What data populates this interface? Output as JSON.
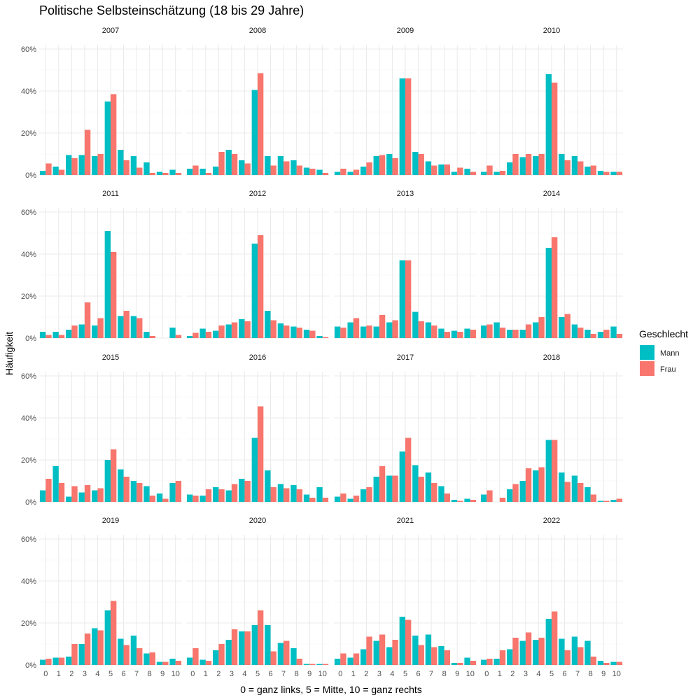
{
  "chart_data": {
    "type": "bar",
    "title": "Politische Selbsteinschätzung (18 bis 29 Jahre)",
    "xlabel": "0 = ganz links, 5 = Mitte, 10 = ganz rechts",
    "ylabel": "Häufigkeit",
    "categories": [
      "0",
      "1",
      "2",
      "3",
      "4",
      "5",
      "6",
      "7",
      "8",
      "9",
      "10"
    ],
    "ylim": [
      0,
      62
    ],
    "yticks": [
      0,
      20,
      40,
      60
    ],
    "ytick_labels": [
      "0%",
      "20%",
      "40%",
      "60%"
    ],
    "legend": {
      "title": "Geschlecht",
      "position": "right",
      "entries": [
        {
          "name": "Mann",
          "color": "#00BFC4"
        },
        {
          "name": "Frau",
          "color": "#F8766D"
        }
      ]
    },
    "panels": [
      {
        "year": "2007",
        "series": [
          {
            "name": "Mann",
            "values": [
              2,
              4,
              9.5,
              9.5,
              9,
              35,
              12,
              9,
              6,
              1.5,
              2.5
            ]
          },
          {
            "name": "Frau",
            "values": [
              5.5,
              2.5,
              8,
              21.5,
              10,
              38.5,
              7,
              3.5,
              1,
              1,
              1
            ]
          }
        ]
      },
      {
        "year": "2008",
        "series": [
          {
            "name": "Mann",
            "values": [
              3,
              3,
              4,
              12,
              7,
              40.5,
              9,
              9,
              7,
              3.5,
              2.5
            ]
          },
          {
            "name": "Frau",
            "values": [
              4.5,
              1,
              11,
              10,
              5.5,
              48.5,
              4.5,
              6.5,
              4.5,
              3,
              1
            ]
          }
        ]
      },
      {
        "year": "2009",
        "series": [
          {
            "name": "Mann",
            "values": [
              1.5,
              1.5,
              4,
              9,
              10,
              46,
              11,
              6.5,
              5,
              1.5,
              3
            ]
          },
          {
            "name": "Frau",
            "values": [
              3,
              2.5,
              6,
              9.5,
              8,
              46,
              10,
              4.5,
              5,
              3.5,
              1.5
            ]
          }
        ]
      },
      {
        "year": "2010",
        "series": [
          {
            "name": "Mann",
            "values": [
              1.5,
              1.5,
              6,
              8.5,
              9,
              48,
              10,
              9,
              4,
              2,
              1.5
            ]
          },
          {
            "name": "Frau",
            "values": [
              4.5,
              2,
              10,
              10,
              10,
              44,
              7,
              6.5,
              4.5,
              1.5,
              1.5
            ]
          }
        ]
      },
      {
        "year": "2011",
        "series": [
          {
            "name": "Mann",
            "values": [
              3,
              3,
              4,
              6.5,
              6,
              51,
              10.5,
              10.5,
              3,
              0,
              5
            ]
          },
          {
            "name": "Frau",
            "values": [
              1.5,
              1.5,
              6,
              17,
              9.5,
              41,
              13,
              9.5,
              1,
              0,
              1.5
            ]
          }
        ]
      },
      {
        "year": "2012",
        "series": [
          {
            "name": "Mann",
            "values": [
              1,
              4.5,
              3.5,
              6.5,
              9,
              45,
              13,
              7,
              5.5,
              4,
              1
            ]
          },
          {
            "name": "Frau",
            "values": [
              2.5,
              3,
              6,
              7.5,
              8,
              49,
              8.5,
              6,
              5,
              3.5,
              0.5
            ]
          }
        ]
      },
      {
        "year": "2013",
        "series": [
          {
            "name": "Mann",
            "values": [
              5.5,
              7.5,
              5.5,
              5.5,
              7.5,
              37,
              12.5,
              7.5,
              4.5,
              3.5,
              4.5
            ]
          },
          {
            "name": "Frau",
            "values": [
              5,
              9.5,
              6,
              11,
              8.5,
              37,
              8,
              6,
              3,
              3,
              4
            ]
          }
        ]
      },
      {
        "year": "2014",
        "series": [
          {
            "name": "Mann",
            "values": [
              6,
              7.5,
              4,
              4,
              7.5,
              43,
              10,
              6.5,
              4,
              3,
              5.5
            ]
          },
          {
            "name": "Frau",
            "values": [
              6.5,
              5,
              4,
              6.5,
              10,
              48,
              11.5,
              5,
              2,
              4,
              2
            ]
          }
        ]
      },
      {
        "year": "2015",
        "series": [
          {
            "name": "Mann",
            "values": [
              5.5,
              17,
              2.5,
              4.5,
              5.5,
              20,
              15.5,
              10,
              7.5,
              4,
              9
            ]
          },
          {
            "name": "Frau",
            "values": [
              11,
              9,
              7.5,
              8,
              6.5,
              25,
              12,
              9,
              3,
              1.5,
              10
            ]
          }
        ]
      },
      {
        "year": "2016",
        "series": [
          {
            "name": "Mann",
            "values": [
              3.5,
              3,
              7,
              5.5,
              11,
              30.5,
              15,
              8.5,
              8,
              3.5,
              7
            ]
          },
          {
            "name": "Frau",
            "values": [
              3,
              6,
              6,
              8.5,
              10,
              45.5,
              7,
              6.5,
              6,
              2,
              2
            ]
          }
        ]
      },
      {
        "year": "2017",
        "series": [
          {
            "name": "Mann",
            "values": [
              2.5,
              1.5,
              6,
              12,
              12.5,
              24,
              17.5,
              14,
              7.5,
              1,
              1.5
            ]
          },
          {
            "name": "Frau",
            "values": [
              4,
              3,
              7,
              17,
              12.5,
              30.5,
              12,
              9,
              4,
              0.5,
              1
            ]
          }
        ]
      },
      {
        "year": "2018",
        "series": [
          {
            "name": "Mann",
            "values": [
              3.5,
              0,
              6,
              10,
              15,
              29.5,
              14,
              12.5,
              7,
              0.5,
              1
            ]
          },
          {
            "name": "Frau",
            "values": [
              5.5,
              2,
              8.5,
              16,
              16.5,
              29.5,
              9.5,
              9,
              3.5,
              0.5,
              1.5
            ]
          }
        ]
      },
      {
        "year": "2019",
        "series": [
          {
            "name": "Mann",
            "values": [
              2.5,
              3.5,
              4,
              10,
              17.5,
              26,
              12.5,
              14,
              5.5,
              1.5,
              3
            ]
          },
          {
            "name": "Frau",
            "values": [
              3,
              3.5,
              10,
              15,
              16.5,
              30.5,
              9.5,
              8,
              6,
              1.5,
              2
            ]
          }
        ]
      },
      {
        "year": "2020",
        "series": [
          {
            "name": "Mann",
            "values": [
              3.5,
              2.5,
              7,
              12,
              16,
              19,
              19,
              10.5,
              8,
              0.5,
              0.5
            ]
          },
          {
            "name": "Frau",
            "values": [
              8,
              2,
              10,
              17,
              16,
              26,
              6.5,
              11.5,
              3,
              0.5,
              0.5
            ]
          }
        ]
      },
      {
        "year": "2021",
        "series": [
          {
            "name": "Mann",
            "values": [
              3,
              3.5,
              7.5,
              11.5,
              8.5,
              23,
              14,
              14.5,
              9,
              1,
              3.5
            ]
          },
          {
            "name": "Frau",
            "values": [
              5.5,
              5.5,
              13.5,
              14.5,
              12,
              21.5,
              9.5,
              8.5,
              7,
              1,
              2
            ]
          }
        ]
      },
      {
        "year": "2022",
        "series": [
          {
            "name": "Mann",
            "values": [
              2.5,
              3,
              7.5,
              11.5,
              12,
              22,
              12.5,
              13.5,
              11.5,
              2,
              1.5
            ]
          },
          {
            "name": "Frau",
            "values": [
              3,
              7,
              13,
              15.5,
              13,
              25.5,
              7,
              8.5,
              4,
              1,
              1.5
            ]
          }
        ]
      }
    ]
  }
}
